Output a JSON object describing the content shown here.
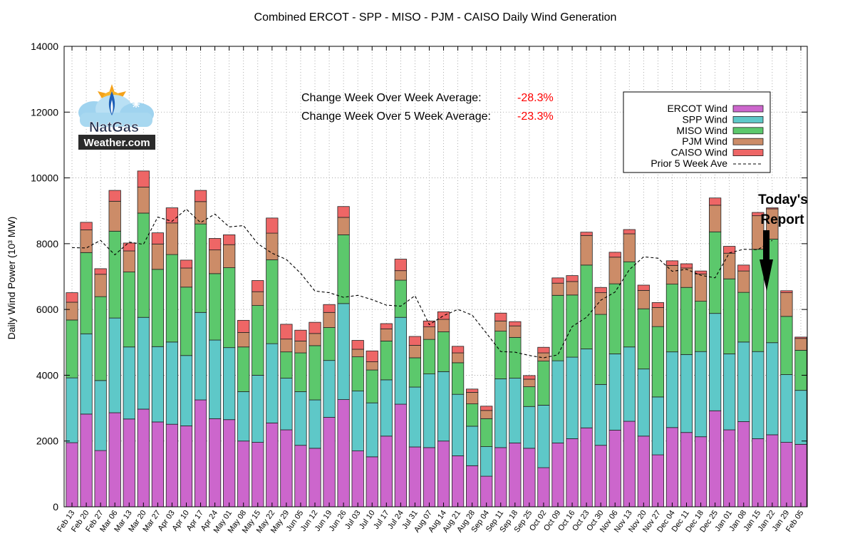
{
  "chart_data": {
    "type": "bar",
    "stacked": true,
    "title": "Combined ERCOT - SPP - MISO - PJM - CAISO Daily Wind Generation",
    "ylabel": "Daily Wind Power (10³ MW)",
    "xlabel": "",
    "ylim": [
      0,
      14000
    ],
    "yticks": [
      0,
      2000,
      4000,
      6000,
      8000,
      10000,
      12000,
      14000
    ],
    "grid": true,
    "legend_position": "top-right",
    "categories": [
      "Feb 13",
      "Feb 20",
      "Feb 27",
      "Mar 06",
      "Mar 13",
      "Mar 20",
      "Mar 27",
      "Apr 03",
      "Apr 10",
      "Apr 17",
      "Apr 24",
      "May 01",
      "May 08",
      "May 15",
      "May 22",
      "May 29",
      "Jun 05",
      "Jun 12",
      "Jun 19",
      "Jun 26",
      "Jul 03",
      "Jul 10",
      "Jul 17",
      "Jul 24",
      "Jul 31",
      "Aug 07",
      "Aug 14",
      "Aug 21",
      "Aug 28",
      "Sep 04",
      "Sep 11",
      "Sep 18",
      "Sep 25",
      "Oct 02",
      "Oct 09",
      "Oct 16",
      "Oct 23",
      "Oct 30",
      "Nov 06",
      "Nov 13",
      "Nov 20",
      "Nov 27",
      "Dec 04",
      "Dec 11",
      "Dec 18",
      "Dec 25",
      "Jan 01",
      "Jan 08",
      "Jan 15",
      "Jan 22",
      "Jan 29",
      "Feb 05"
    ],
    "series": [
      {
        "name": "ERCOT Wind",
        "color": "#cc66cc",
        "values": [
          1950,
          2820,
          1710,
          2860,
          2670,
          2970,
          2580,
          2510,
          2460,
          3250,
          2680,
          2650,
          2000,
          1960,
          2550,
          2340,
          1870,
          1780,
          2720,
          3260,
          1700,
          1520,
          2150,
          3120,
          1820,
          1800,
          2000,
          1550,
          1250,
          930,
          1800,
          1940,
          1780,
          1190,
          1940,
          2070,
          2400,
          1870,
          2330,
          2600,
          2150,
          1580,
          2410,
          2260,
          2130,
          2920,
          2340,
          2590,
          2070,
          2190,
          1960,
          1900
        ]
      },
      {
        "name": "SPP Wind",
        "color": "#5ec8c8",
        "values": [
          1970,
          2440,
          2130,
          2880,
          2190,
          2790,
          2290,
          2500,
          2140,
          2660,
          2390,
          2190,
          1500,
          2040,
          2410,
          1570,
          1630,
          1470,
          1730,
          2920,
          1820,
          1640,
          1710,
          2640,
          1820,
          2240,
          2110,
          1870,
          1200,
          900,
          2090,
          1970,
          1270,
          1900,
          2500,
          2480,
          2400,
          1850,
          2320,
          2260,
          2040,
          1760,
          2300,
          2370,
          2590,
          2960,
          2310,
          2420,
          2650,
          2800,
          2060,
          1640
        ]
      },
      {
        "name": "MISO Wind",
        "color": "#5cc86c",
        "values": [
          1760,
          2470,
          2550,
          2640,
          2280,
          3170,
          2350,
          2660,
          2080,
          2690,
          2020,
          2430,
          1360,
          2120,
          2550,
          800,
          1180,
          1650,
          1000,
          2090,
          1040,
          1000,
          1180,
          1130,
          890,
          1050,
          1210,
          960,
          680,
          850,
          1450,
          1240,
          600,
          1340,
          1990,
          1890,
          2550,
          2130,
          2130,
          2590,
          1830,
          2140,
          2060,
          2040,
          1530,
          2480,
          2280,
          1510,
          3110,
          3150,
          1770,
          1220
        ]
      },
      {
        "name": "PJM Wind",
        "color": "#cc8c68",
        "values": [
          540,
          690,
          680,
          910,
          640,
          790,
          770,
          960,
          580,
          680,
          720,
          700,
          440,
          420,
          810,
          390,
          360,
          370,
          460,
          530,
          230,
          250,
          370,
          290,
          380,
          380,
          380,
          300,
          350,
          250,
          310,
          350,
          230,
          250,
          370,
          410,
          900,
          660,
          810,
          850,
          560,
          580,
          570,
          590,
          830,
          810,
          780,
          650,
          1020,
          920,
          720,
          360
        ]
      },
      {
        "name": "CAISO Wind",
        "color": "#ee6666",
        "values": [
          290,
          230,
          170,
          330,
          240,
          490,
          340,
          460,
          240,
          340,
          350,
          300,
          370,
          340,
          460,
          450,
          330,
          340,
          240,
          330,
          270,
          330,
          160,
          350,
          270,
          180,
          230,
          200,
          100,
          130,
          240,
          130,
          110,
          170,
          160,
          180,
          100,
          160,
          150,
          130,
          160,
          150,
          140,
          130,
          90,
          220,
          210,
          180,
          100,
          30,
          60,
          40
        ]
      }
    ],
    "prior_5_week_ave": {
      "name": "Prior 5 Week Ave",
      "values": [
        7880,
        7870,
        8100,
        7660,
        8050,
        7980,
        8810,
        8680,
        9050,
        8640,
        8900,
        8510,
        8550,
        8000,
        7710,
        7520,
        7100,
        6560,
        6510,
        6370,
        6430,
        6300,
        6130,
        6100,
        6420,
        5540,
        5810,
        6000,
        5830,
        5280,
        4720,
        4700,
        4600,
        4530,
        4620,
        5480,
        5760,
        6280,
        6530,
        7210,
        7600,
        7560,
        7160,
        7220,
        7040,
        6960,
        7720,
        7830,
        7820,
        8100,
        null,
        null
      ]
    },
    "annotations": {
      "wow_label": "Change Week Over Week Average:",
      "wow_value": "-28.3%",
      "w5_label": "Change Week Over 5 Week Average:",
      "w5_value": "-23.3%",
      "report_line1": "Today's",
      "report_line2": "Report"
    },
    "logo": {
      "line1": "NatGas",
      "line2": "Weather.com"
    }
  }
}
